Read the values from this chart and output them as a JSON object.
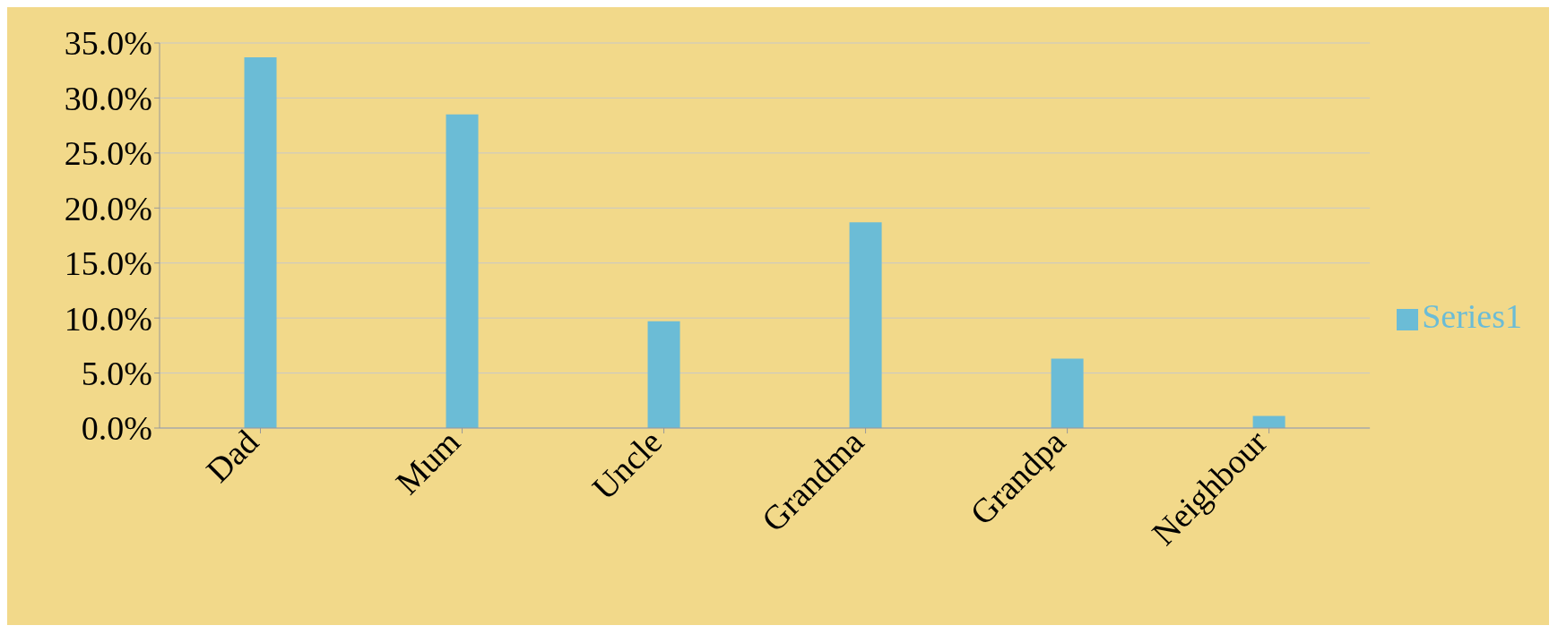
{
  "chart_data": {
    "type": "bar",
    "categories": [
      "Dad",
      "Mum",
      "Uncle",
      "Grandma",
      "Grandpa",
      "Neighbour"
    ],
    "series": [
      {
        "name": "Series1",
        "color": "#6bbcd6",
        "values": [
          33.7,
          28.5,
          9.7,
          18.7,
          6.3,
          1.1
        ]
      }
    ],
    "ylim": [
      0,
      35
    ],
    "yticks": [
      {
        "value": 0,
        "label": "0.0%"
      },
      {
        "value": 5,
        "label": "5.0%"
      },
      {
        "value": 10,
        "label": "10.0%"
      },
      {
        "value": 15,
        "label": "15.0%"
      },
      {
        "value": 20,
        "label": "20.0%"
      },
      {
        "value": 25,
        "label": "25.0%"
      },
      {
        "value": 30,
        "label": "30.0%"
      },
      {
        "value": 35,
        "label": "35.0%"
      }
    ],
    "grid": "y",
    "legend": "right"
  }
}
